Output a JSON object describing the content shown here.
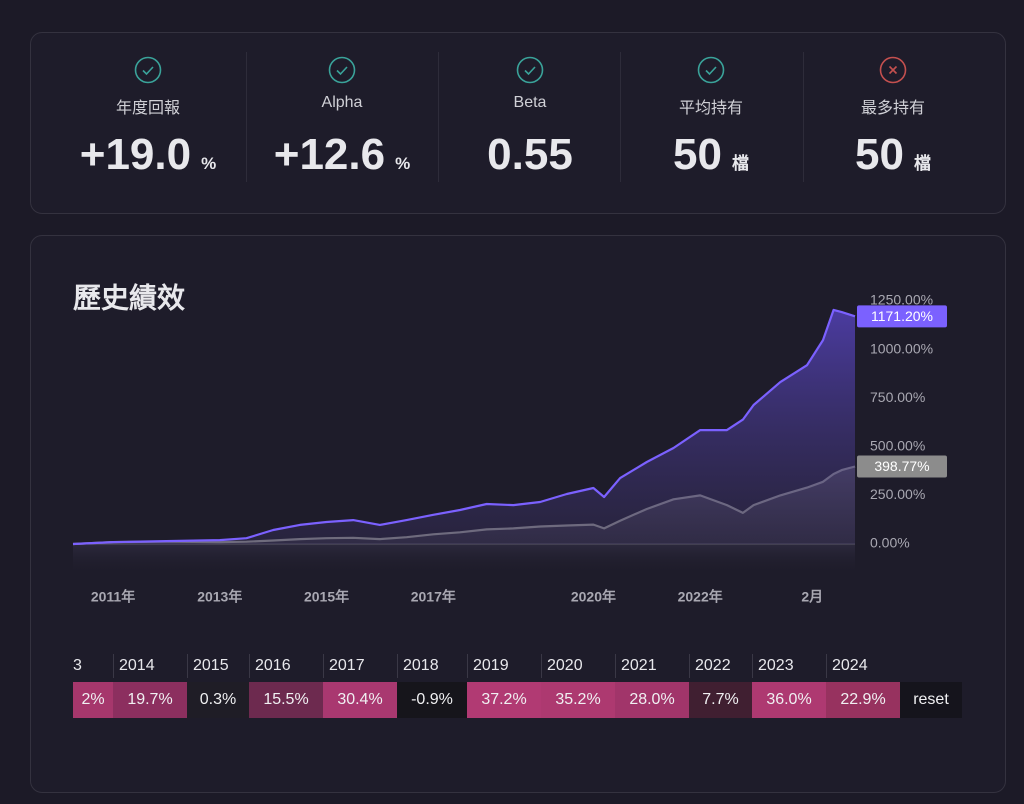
{
  "metrics": [
    {
      "label": "年度回報",
      "value": "+19.0",
      "unit": "%"
    },
    {
      "label": "Alpha",
      "value": "+12.6",
      "unit": "%"
    },
    {
      "label": "Beta",
      "value": "0.55"
    },
    {
      "label": "平均持有",
      "value": "50",
      "unit": "檔"
    },
    {
      "label": "最多持有",
      "value": "50",
      "unit": "檔"
    }
  ],
  "chart_data": {
    "type": "line",
    "title": "歷史績效",
    "x": [
      2010.25,
      2011,
      2012,
      2013,
      2013.5,
      2014,
      2014.5,
      2015,
      2015.5,
      2016,
      2016.5,
      2017,
      2017.5,
      2018,
      2018.5,
      2019,
      2019.5,
      2020,
      2020.2,
      2020.5,
      2021,
      2021.5,
      2022,
      2022.5,
      2022.8,
      2023,
      2023.5,
      2024,
      2024.3,
      2024.5,
      2024.65,
      2024.9
    ],
    "series": [
      {
        "color": "#7b61ff",
        "values": [
          0,
          10,
          15,
          20,
          30,
          72,
          98,
          113,
          123,
          98,
          123,
          150,
          175,
          206,
          200,
          216,
          257,
          288,
          242,
          339,
          422,
          494,
          586,
          586,
          640,
          715,
          833,
          920,
          1049,
          1204,
          1193,
          1171.2
        ],
        "value_labels": [
          null,
          null,
          null,
          null,
          null,
          null,
          null,
          null,
          null,
          null,
          null,
          null,
          null,
          null,
          null,
          null,
          null,
          null,
          null,
          null,
          null,
          null,
          null,
          null,
          null,
          null,
          null,
          null,
          null,
          null,
          null,
          "1171.20%"
        ]
      },
      {
        "color": "#8c8c8c",
        "values": [
          0,
          10,
          12,
          10,
          12,
          18,
          25,
          30,
          32,
          25,
          35,
          50,
          60,
          75,
          80,
          90,
          95,
          100,
          80,
          120,
          180,
          230,
          250,
          200,
          160,
          200,
          250,
          290,
          320,
          360,
          380,
          398.77
        ],
        "value_labels": [
          null,
          null,
          null,
          null,
          null,
          null,
          null,
          null,
          null,
          null,
          null,
          null,
          null,
          null,
          null,
          null,
          null,
          null,
          null,
          null,
          null,
          null,
          null,
          null,
          null,
          null,
          null,
          null,
          null,
          null,
          null,
          "398.77%"
        ]
      }
    ],
    "xlim": [
      2010.25,
      2024.9
    ],
    "xticks": [
      {
        "value": 2011,
        "label": "2011年"
      },
      {
        "value": 2013,
        "label": "2013年"
      },
      {
        "value": 2015,
        "label": "2015年"
      },
      {
        "value": 2017,
        "label": "2017年"
      },
      {
        "value": 2020,
        "label": "2020年"
      },
      {
        "value": 2022,
        "label": "2022年"
      },
      {
        "value": 2024.1,
        "label": "2月"
      }
    ],
    "ylim": [
      0,
      1250
    ],
    "yticks": [
      {
        "value": 0,
        "label": "0.00%"
      },
      {
        "value": 250,
        "label": "250.00%"
      },
      {
        "value": 500,
        "label": "500.00%"
      },
      {
        "value": 750,
        "label": "750.00%"
      },
      {
        "value": 1000,
        "label": "1000.00%"
      },
      {
        "value": 1250,
        "label": "1250.00%"
      }
    ]
  },
  "returns_table": {
    "years": [
      "3",
      "2014",
      "2015",
      "2016",
      "2017",
      "2018",
      "2019",
      "2020",
      "2021",
      "2022",
      "2023",
      "2024"
    ],
    "returns": [
      "2%",
      "19.7%",
      "0.3%",
      "15.5%",
      "30.4%",
      "-0.9%",
      "37.2%",
      "35.2%",
      "28.0%",
      "7.7%",
      "36.0%",
      "22.9%"
    ],
    "colors": [
      "#a6376c",
      "#8c2f5f",
      "#1f1d26",
      "#6d2a4f",
      "#a93870",
      "#16151b",
      "#b13a73",
      "#ad3970",
      "#a1356a",
      "#401f31",
      "#ae3971",
      "#97325f"
    ],
    "reset": "reset"
  }
}
